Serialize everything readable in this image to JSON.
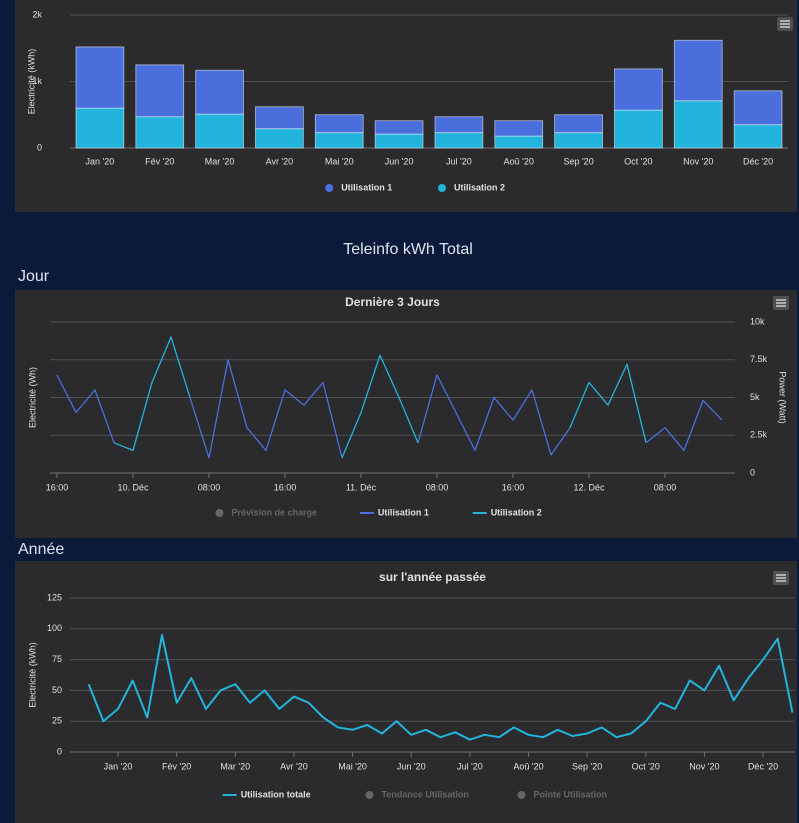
{
  "header": "Teleinfo kWh Total",
  "sections": [
    "Jour",
    "Année"
  ],
  "chart_data": [
    {
      "type": "bar",
      "stacked": true,
      "ylabel": "Electricité (kWh)",
      "categories": [
        "Jan '20",
        "Fév '20",
        "Mar '20",
        "Avr '20",
        "Mai '20",
        "Jun '20",
        "Jul '20",
        "Aoû '20",
        "Sep '20",
        "Oct '20",
        "Nov '20",
        "Déc '20"
      ],
      "series": [
        {
          "name": "Utilisation 1",
          "color": "#4a6fdc",
          "values": [
            920,
            780,
            660,
            330,
            270,
            200,
            240,
            230,
            270,
            620,
            910,
            510
          ]
        },
        {
          "name": "Utilisation 2",
          "color": "#22b4dc",
          "values": [
            600,
            470,
            510,
            290,
            230,
            210,
            230,
            180,
            230,
            570,
            710,
            350
          ]
        }
      ],
      "ylim": [
        0,
        2000
      ],
      "yticks": [
        0,
        {
          "value": 1000,
          "label": "1k"
        },
        {
          "value": 2000,
          "label": "2k"
        }
      ],
      "grid": true
    },
    {
      "type": "line",
      "title": "Dernière 3 Jours",
      "ylabel": "Electricité (Wh)",
      "y2label": "Power (Watt)",
      "x": [
        "09. Déc 16:00",
        "09. Déc 18:00",
        "09. Déc 20:00",
        "09. Déc 22:00",
        "10. Déc 00:00",
        "10. Déc 02:00",
        "10. Déc 04:00",
        "10. Déc 06:00",
        "10. Déc 08:00",
        "10. Déc 10:00",
        "10. Déc 12:00",
        "10. Déc 14:00",
        "10. Déc 16:00",
        "10. Déc 18:00",
        "10. Déc 20:00",
        "10. Déc 22:00",
        "11. Déc 00:00",
        "11. Déc 02:00",
        "11. Déc 04:00",
        "11. Déc 06:00",
        "11. Déc 08:00",
        "11. Déc 10:00",
        "11. Déc 12:00",
        "11. Déc 14:00",
        "11. Déc 16:00",
        "11. Déc 18:00",
        "11. Déc 20:00",
        "11. Déc 22:00",
        "12. Déc 00:00",
        "12. Déc 02:00",
        "12. Déc 04:00",
        "12. Déc 06:00",
        "12. Déc 08:00",
        "12. Déc 10:00",
        "12. Déc 12:00",
        "12. Déc 14:00"
      ],
      "xticks": [
        {
          "value": "09. Déc 16:00",
          "label": "16:00"
        },
        {
          "value": "10. Déc 00:00",
          "label": "10. Déc"
        },
        {
          "value": "10. Déc 08:00",
          "label": "08:00"
        },
        {
          "value": "10. Déc 16:00",
          "label": "16:00"
        },
        {
          "value": "11. Déc 00:00",
          "label": "11. Déc"
        },
        {
          "value": "11. Déc 08:00",
          "label": "08:00"
        },
        {
          "value": "11. Déc 16:00",
          "label": "16:00"
        },
        {
          "value": "12. Déc 00:00",
          "label": "12. Déc"
        },
        {
          "value": "12. Déc 08:00",
          "label": "08:00"
        }
      ],
      "series": [
        {
          "name": "Prévision de charge",
          "color": "#777777",
          "visible": false
        },
        {
          "name": "Utilisation 1",
          "color": "#4a6fdc",
          "axis": "y2",
          "values": [
            6500,
            4000,
            5500,
            2000,
            null,
            null,
            null,
            5000,
            1000,
            7500,
            3000,
            1500,
            5500,
            4500,
            6000,
            1000,
            null,
            null,
            null,
            2000,
            6500,
            4000,
            1500,
            5000,
            3500,
            5500,
            1200,
            3000,
            null,
            null,
            null,
            2000,
            3000,
            1500,
            4800,
            3500
          ]
        },
        {
          "name": "Utilisation 2",
          "color": "#22b4dc",
          "axis": "y2",
          "values": [
            null,
            null,
            null,
            2000,
            1500,
            6000,
            9000,
            5000,
            null,
            null,
            null,
            null,
            null,
            null,
            null,
            1000,
            4000,
            7800,
            5000,
            2000,
            null,
            null,
            null,
            null,
            null,
            null,
            null,
            3000,
            6000,
            4500,
            7200,
            2000,
            null,
            null,
            null,
            null
          ]
        }
      ],
      "y2lim": [
        0,
        10000
      ],
      "y2ticks": [
        0,
        {
          "value": 2500,
          "label": "2.5k"
        },
        {
          "value": 5000,
          "label": "5k"
        },
        {
          "value": 7500,
          "label": "7.5k"
        },
        {
          "value": 10000,
          "label": "10k"
        }
      ],
      "grid": true
    },
    {
      "type": "line",
      "title": "sur l'année passée",
      "ylabel": "Electricité (kWh)",
      "x": [
        "15 Déc '19",
        "22 Déc '19",
        "1 Jan '20",
        "8 Jan '20",
        "15 Jan '20",
        "22 Jan '20",
        "1 Fév '20",
        "8 Fév '20",
        "15 Fév '20",
        "22 Fév '20",
        "1 Mar '20",
        "8 Mar '20",
        "15 Mar '20",
        "22 Mar '20",
        "1 Avr '20",
        "8 Avr '20",
        "15 Avr '20",
        "22 Avr '20",
        "1 Mai '20",
        "8 Mai '20",
        "15 Mai '20",
        "22 Mai '20",
        "1 Jun '20",
        "8 Jun '20",
        "15 Jun '20",
        "22 Jun '20",
        "1 Jul '20",
        "8 Jul '20",
        "15 Jul '20",
        "22 Jul '20",
        "1 Aoû '20",
        "8 Aoû '20",
        "15 Aoû '20",
        "22 Aoû '20",
        "1 Sep '20",
        "8 Sep '20",
        "15 Sep '20",
        "22 Sep '20",
        "1 Oct '20",
        "8 Oct '20",
        "15 Oct '20",
        "22 Oct '20",
        "1 Nov '20",
        "8 Nov '20",
        "15 Nov '20",
        "22 Nov '20",
        "1 Déc '20",
        "8 Déc '20",
        "15 Déc '20"
      ],
      "xticks": [
        {
          "value": "1 Jan '20",
          "label": "Jan '20"
        },
        {
          "value": "1 Fév '20",
          "label": "Fév '20"
        },
        {
          "value": "1 Mar '20",
          "label": "Mar '20"
        },
        {
          "value": "1 Avr '20",
          "label": "Avr '20"
        },
        {
          "value": "1 Mai '20",
          "label": "Mai '20"
        },
        {
          "value": "1 Jun '20",
          "label": "Jun '20"
        },
        {
          "value": "1 Jul '20",
          "label": "Jul '20"
        },
        {
          "value": "1 Aoû '20",
          "label": "Aoû '20"
        },
        {
          "value": "1 Sep '20",
          "label": "Sep '20"
        },
        {
          "value": "1 Oct '20",
          "label": "Oct '20"
        },
        {
          "value": "1 Nov '20",
          "label": "Nov '20"
        },
        {
          "value": "1 Déc '20",
          "label": "Déc '20"
        }
      ],
      "series": [
        {
          "name": "Utilisation totale",
          "color": "#22b4dc",
          "values": [
            55,
            25,
            35,
            58,
            28,
            95,
            40,
            60,
            35,
            50,
            55,
            40,
            50,
            35,
            45,
            40,
            28,
            20,
            18,
            22,
            15,
            25,
            14,
            18,
            12,
            16,
            10,
            14,
            12,
            20,
            14,
            12,
            18,
            13,
            15,
            20,
            12,
            15,
            25,
            40,
            35,
            58,
            50,
            70,
            42,
            60,
            75,
            92,
            32
          ]
        },
        {
          "name": "Tendance Utilisation",
          "color": "#777777",
          "visible": false
        },
        {
          "name": "Pointe Utilisation",
          "color": "#777777",
          "visible": false
        }
      ],
      "ylim": [
        0,
        125
      ],
      "yticks": [
        0,
        25,
        50,
        75,
        100,
        125
      ],
      "grid": true
    }
  ]
}
